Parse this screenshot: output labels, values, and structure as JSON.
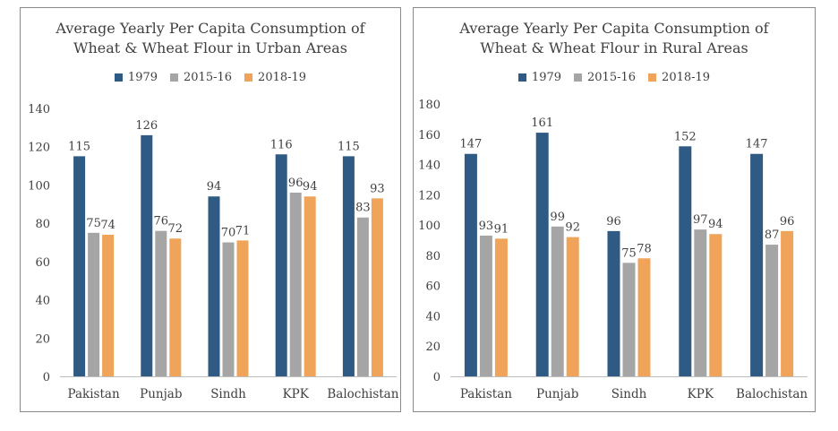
{
  "colors": {
    "1979": "#2e5a84",
    "2015-16": "#a5a5a5",
    "2018-19": "#f0a45a"
  },
  "chart_data": [
    {
      "type": "bar",
      "title": [
        "Average Yearly Per Capita Consumption of",
        "Wheat & Wheat Flour in Urban Areas"
      ],
      "categories": [
        "Pakistan",
        "Punjab",
        "Sindh",
        "KPK",
        "Balochistan"
      ],
      "series": [
        {
          "name": "1979",
          "values": [
            115,
            126,
            94,
            116,
            115
          ]
        },
        {
          "name": "2015-16",
          "values": [
            75,
            76,
            70,
            96,
            83
          ]
        },
        {
          "name": "2018-19",
          "values": [
            74,
            72,
            71,
            94,
            93
          ]
        }
      ],
      "ylim": [
        0,
        140
      ],
      "yticks": [
        0,
        20,
        40,
        60,
        80,
        100,
        120,
        140
      ],
      "legend": "top",
      "grid": false
    },
    {
      "type": "bar",
      "title": [
        "Average Yearly Per Capita Consumption of",
        "Wheat & Wheat Flour in Rural Areas"
      ],
      "categories": [
        "Pakistan",
        "Punjab",
        "Sindh",
        "KPK",
        "Balochistan"
      ],
      "series": [
        {
          "name": "1979",
          "values": [
            147,
            161,
            96,
            152,
            147
          ]
        },
        {
          "name": "2015-16",
          "values": [
            93,
            99,
            75,
            97,
            87
          ]
        },
        {
          "name": "2018-19",
          "values": [
            91,
            92,
            78,
            94,
            96
          ]
        }
      ],
      "ylim": [
        0,
        180
      ],
      "yticks": [
        0,
        20,
        40,
        60,
        80,
        100,
        120,
        140,
        160,
        180
      ],
      "legend": "top",
      "grid": false
    }
  ]
}
